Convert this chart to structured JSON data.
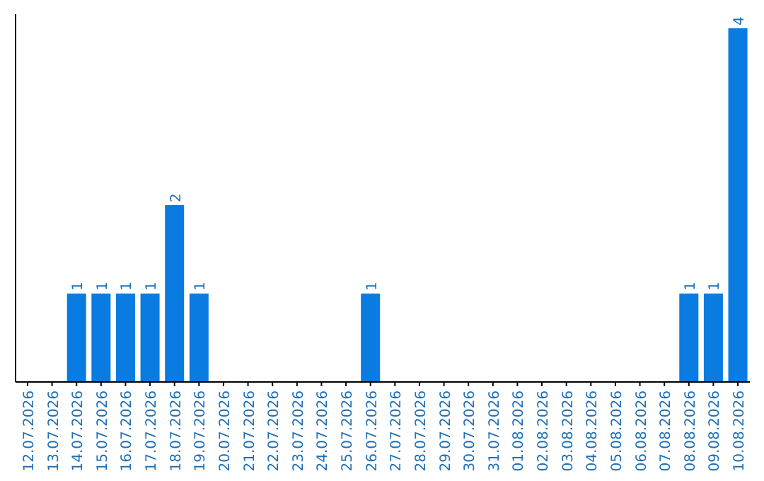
{
  "chart_data": {
    "type": "bar",
    "categories": [
      "12.07.2026",
      "13.07.2026",
      "14.07.2026",
      "15.07.2026",
      "16.07.2026",
      "17.07.2026",
      "18.07.2026",
      "19.07.2026",
      "20.07.2026",
      "21.07.2026",
      "22.07.2026",
      "23.07.2026",
      "24.07.2026",
      "25.07.2026",
      "26.07.2026",
      "27.07.2026",
      "28.07.2026",
      "29.07.2026",
      "30.07.2026",
      "31.07.2026",
      "01.08.2026",
      "02.08.2026",
      "03.08.2026",
      "04.08.2026",
      "05.08.2026",
      "06.08.2026",
      "07.08.2026",
      "08.08.2026",
      "09.08.2026",
      "10.08.2026"
    ],
    "values": [
      0,
      0,
      1,
      1,
      1,
      1,
      2,
      1,
      0,
      0,
      0,
      0,
      0,
      0,
      1,
      0,
      0,
      0,
      0,
      0,
      0,
      0,
      0,
      0,
      0,
      0,
      0,
      1,
      1,
      4
    ],
    "value_labels": [
      null,
      null,
      "1",
      "1",
      "1",
      "1",
      "2",
      "1",
      null,
      null,
      null,
      null,
      null,
      null,
      "1",
      null,
      null,
      null,
      null,
      null,
      null,
      null,
      null,
      null,
      null,
      null,
      null,
      "1",
      "1",
      "4"
    ],
    "color": "#0a7be0"
  }
}
